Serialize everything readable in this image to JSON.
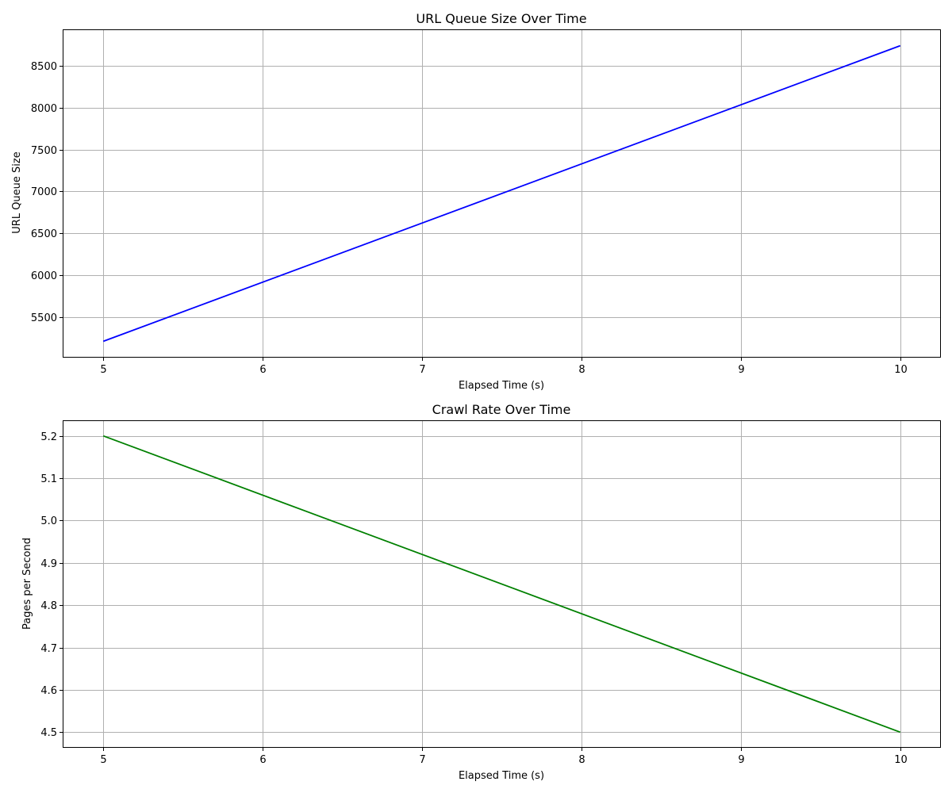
{
  "chart_data": [
    {
      "type": "line",
      "title": "URL Queue Size Over Time",
      "xlabel": "Elapsed Time (s)",
      "ylabel": "URL Queue Size",
      "x": [
        5,
        10
      ],
      "series": [
        {
          "color": "#0000ff",
          "values": [
            5210,
            8740
          ]
        }
      ],
      "xlim": [
        4.75,
        10.25
      ],
      "ylim": [
        5024,
        8926
      ],
      "xticks": [
        5,
        6,
        7,
        8,
        9,
        10
      ],
      "yticks": [
        5500,
        6000,
        6500,
        7000,
        7500,
        8000,
        8500
      ],
      "grid": true
    },
    {
      "type": "line",
      "title": "Crawl Rate Over Time",
      "xlabel": "Elapsed Time (s)",
      "ylabel": "Pages per Second",
      "x": [
        5,
        10
      ],
      "series": [
        {
          "color": "#008000",
          "values": [
            5.2,
            4.5
          ]
        }
      ],
      "xlim": [
        4.75,
        10.25
      ],
      "ylim": [
        4.465,
        5.235
      ],
      "xticks": [
        5,
        6,
        7,
        8,
        9,
        10
      ],
      "yticks": [
        4.5,
        4.6,
        4.7,
        4.8,
        4.9,
        5.0,
        5.1,
        5.2
      ],
      "ytick_labels": [
        "4.5",
        "4.6",
        "4.7",
        "4.8",
        "4.9",
        "5.0",
        "5.1",
        "5.2"
      ],
      "grid": true
    }
  ]
}
